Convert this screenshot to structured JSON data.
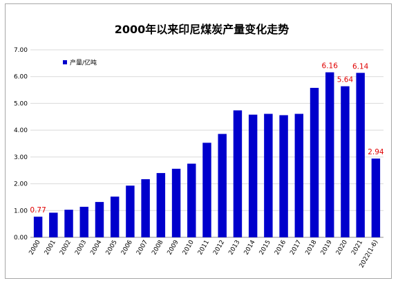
{
  "chart_data": {
    "type": "bar",
    "title": "2000年以来印尼煤炭产量变化走势",
    "legend": {
      "label": "产量/亿吨",
      "placement": "top-left"
    },
    "series_color": "#0000cc",
    "label_color": "#e00000",
    "grid": true,
    "ylim": [
      0,
      7
    ],
    "yticks": [
      "0.00",
      "1.00",
      "2.00",
      "3.00",
      "4.00",
      "5.00",
      "6.00",
      "7.00"
    ],
    "categories": [
      "2000",
      "2001",
      "2002",
      "2003",
      "2004",
      "2005",
      "2006",
      "2007",
      "2008",
      "2009",
      "2010",
      "2011",
      "2012",
      "2013",
      "2014",
      "2015",
      "2016",
      "2017",
      "2018",
      "2019",
      "2020",
      "2021",
      "2022(1-6)"
    ],
    "values": [
      0.77,
      0.92,
      1.03,
      1.14,
      1.32,
      1.52,
      1.93,
      2.17,
      2.4,
      2.56,
      2.75,
      3.53,
      3.86,
      4.74,
      4.58,
      4.61,
      4.56,
      4.61,
      5.58,
      6.16,
      5.64,
      6.14,
      2.94
    ],
    "data_labels": [
      {
        "category": "2000",
        "text": "0.77"
      },
      {
        "category": "2019",
        "text": "6.16"
      },
      {
        "category": "2020",
        "text": "5.64"
      },
      {
        "category": "2021",
        "text": "6.14"
      },
      {
        "category": "2022(1-6)",
        "text": "2.94"
      }
    ]
  }
}
